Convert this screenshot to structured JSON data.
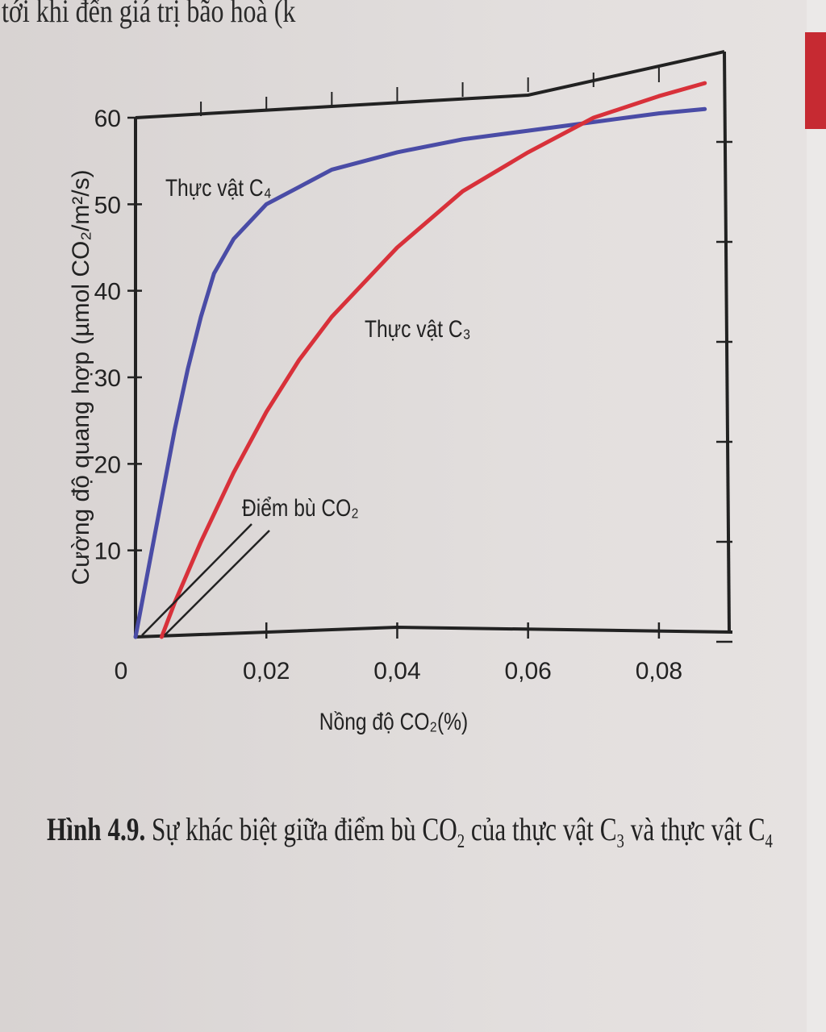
{
  "header_fragment": "tới khi đến giá trị bão hoà (k",
  "caption": {
    "number": "Hình 4.9.",
    "text_a": "Sự khác biệt giữa điểm bù CO",
    "sub_a": "2",
    "text_b": "của thực vật C",
    "sub_b": "3",
    "text_c": "và thực vật C",
    "sub_c": "4"
  },
  "chart_data": {
    "type": "line",
    "xlabel": "Nồng độ CO₂(%)",
    "ylabel": "Cường độ quang hợp (µmol CO₂/m²/s)",
    "xlim": [
      0,
      0.09
    ],
    "ylim": [
      0,
      60
    ],
    "x_ticks": [
      "0",
      "0,02",
      "0,04",
      "0,06",
      "0,08"
    ],
    "x_tick_values": [
      0,
      0.02,
      0.04,
      0.06,
      0.08
    ],
    "y_ticks": [
      "0",
      "10",
      "20",
      "30",
      "40",
      "50",
      "60"
    ],
    "y_tick_values": [
      0,
      10,
      20,
      30,
      40,
      50,
      60
    ],
    "series": [
      {
        "name": "Thực vật C₄",
        "color": "#4a4ca6",
        "x": [
          0,
          0.002,
          0.004,
          0.006,
          0.008,
          0.01,
          0.012,
          0.015,
          0.02,
          0.025,
          0.03,
          0.04,
          0.05,
          0.06,
          0.07,
          0.08,
          0.087
        ],
        "y": [
          0,
          8,
          16,
          24,
          31,
          37,
          42,
          46,
          50,
          52,
          54,
          56,
          57.5,
          58.5,
          59.5,
          60.5,
          61
        ]
      },
      {
        "name": "Thực vật C₃",
        "color": "#d8313a",
        "x": [
          0.004,
          0.006,
          0.008,
          0.01,
          0.015,
          0.02,
          0.025,
          0.03,
          0.04,
          0.05,
          0.06,
          0.07,
          0.08,
          0.087
        ],
        "y": [
          0,
          4,
          7.5,
          11,
          19,
          26,
          32,
          37,
          45,
          51.5,
          56,
          60,
          62.5,
          64
        ]
      }
    ],
    "annotations": [
      {
        "text": "Thực vật C₄"
      },
      {
        "text": "Thực vật C₃"
      },
      {
        "text": "Điểm bù CO₂"
      }
    ]
  }
}
